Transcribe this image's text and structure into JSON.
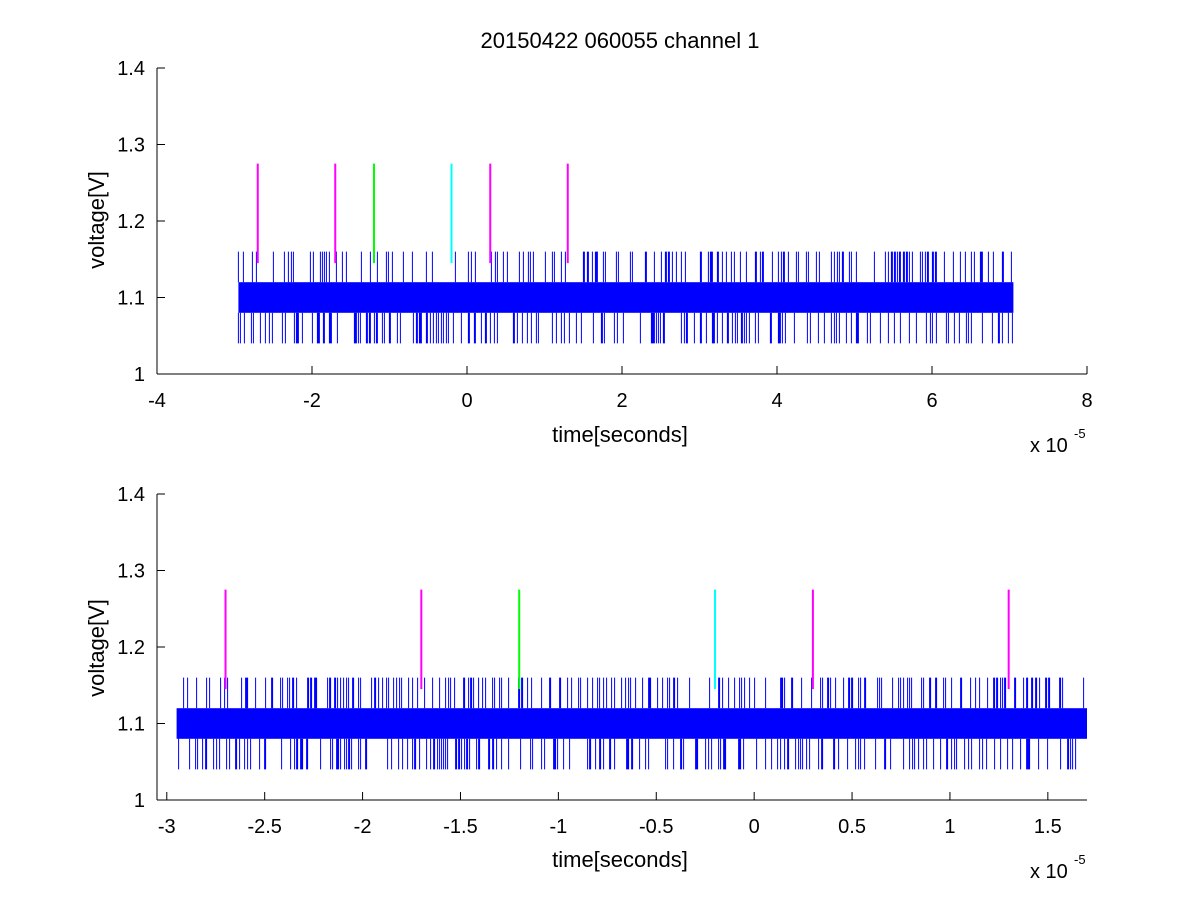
{
  "figure": {
    "title": "20150422 060055 channel 1"
  },
  "colors": {
    "signal": "#0000ff",
    "magenta": "#ff00ff",
    "green": "#00ff00",
    "cyan": "#00ffff",
    "axes": "#000000"
  },
  "chart_data": [
    {
      "type": "line",
      "title": "20150422 060055 channel 1",
      "xlabel": "time[seconds]",
      "ylabel": "voltage[V]",
      "x_exponent_label": "x 10",
      "x_exponent_power": "-5",
      "xlim": [
        -4,
        8
      ],
      "ylim": [
        1,
        1.4
      ],
      "x_ticks": [
        -4,
        -2,
        0,
        2,
        4,
        6,
        8
      ],
      "x_tick_labels": [
        "-4",
        "-2",
        "0",
        "2",
        "4",
        "6",
        "8"
      ],
      "y_ticks": [
        1,
        1.1,
        1.2,
        1.3,
        1.4
      ],
      "y_tick_labels": [
        "1",
        "1.1",
        "1.2",
        "1.3",
        "1.4"
      ],
      "grid": false,
      "series": [
        {
          "color": "#0000ff",
          "description": "noisy digitized voltage trace",
          "x_range": [
            -2.95,
            7.05
          ],
          "levels": [
            1.04,
            1.08,
            1.12,
            1.16
          ],
          "dominant_band": [
            1.08,
            1.12
          ]
        }
      ],
      "markers": [
        {
          "x": -2.7,
          "y_range": [
            1.145,
            1.275
          ],
          "color": "#ff00ff"
        },
        {
          "x": -1.7,
          "y_range": [
            1.145,
            1.275
          ],
          "color": "#ff00ff"
        },
        {
          "x": -1.2,
          "y_range": [
            1.145,
            1.275
          ],
          "color": "#00ff00"
        },
        {
          "x": -0.2,
          "y_range": [
            1.145,
            1.275
          ],
          "color": "#00ffff"
        },
        {
          "x": 0.3,
          "y_range": [
            1.145,
            1.275
          ],
          "color": "#ff00ff"
        },
        {
          "x": 1.3,
          "y_range": [
            1.145,
            1.275
          ],
          "color": "#ff00ff"
        }
      ]
    },
    {
      "type": "line",
      "title": "",
      "xlabel": "time[seconds]",
      "ylabel": "voltage[V]",
      "x_exponent_label": "x 10",
      "x_exponent_power": "-5",
      "xlim": [
        -3.05,
        1.7
      ],
      "ylim": [
        1,
        1.4
      ],
      "x_ticks": [
        -3,
        -2.5,
        -2,
        -1.5,
        -1,
        -0.5,
        0,
        0.5,
        1,
        1.5
      ],
      "x_tick_labels": [
        "-3",
        "-2.5",
        "-2",
        "-1.5",
        "-1",
        "-0.5",
        "0",
        "0.5",
        "1",
        "1.5"
      ],
      "y_ticks": [
        1,
        1.1,
        1.2,
        1.3,
        1.4
      ],
      "y_tick_labels": [
        "1",
        "1.1",
        "1.2",
        "1.3",
        "1.4"
      ],
      "grid": false,
      "series": [
        {
          "color": "#0000ff",
          "description": "noisy digitized voltage trace",
          "x_range": [
            -2.95,
            1.7
          ],
          "levels": [
            1.04,
            1.08,
            1.12,
            1.16
          ],
          "dominant_band": [
            1.08,
            1.12
          ]
        }
      ],
      "markers": [
        {
          "x": -2.7,
          "y_range": [
            1.145,
            1.275
          ],
          "color": "#ff00ff"
        },
        {
          "x": -1.7,
          "y_range": [
            1.145,
            1.275
          ],
          "color": "#ff00ff"
        },
        {
          "x": -1.2,
          "y_range": [
            1.145,
            1.275
          ],
          "color": "#00ff00"
        },
        {
          "x": -0.2,
          "y_range": [
            1.145,
            1.275
          ],
          "color": "#00ffff"
        },
        {
          "x": 0.3,
          "y_range": [
            1.145,
            1.275
          ],
          "color": "#ff00ff"
        },
        {
          "x": 1.3,
          "y_range": [
            1.145,
            1.275
          ],
          "color": "#ff00ff"
        }
      ]
    }
  ]
}
